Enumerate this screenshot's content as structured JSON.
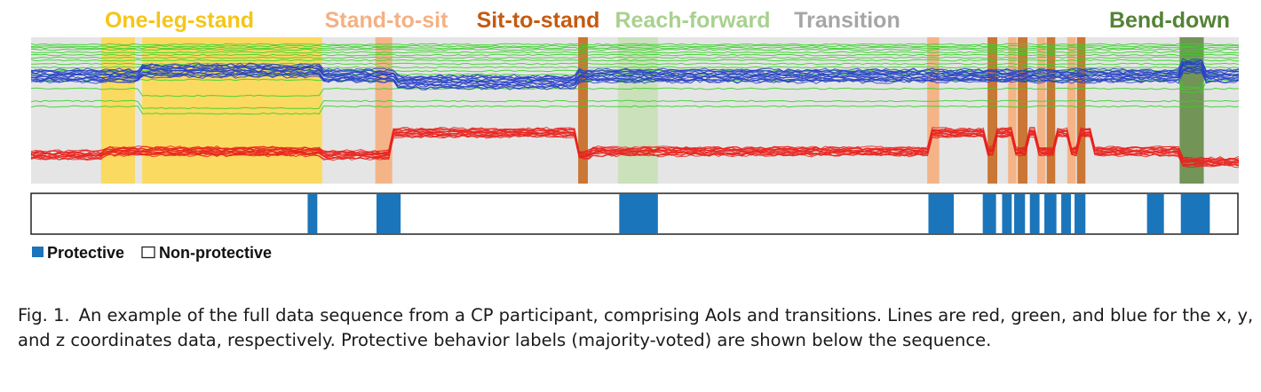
{
  "chart_data": {
    "type": "line",
    "title": "",
    "activities": [
      {
        "name": "One-leg-stand",
        "color": "#f5c518",
        "fill": "#fbd95a",
        "spans": [
          [
            0.058,
            0.086
          ],
          [
            0.092,
            0.241
          ]
        ]
      },
      {
        "name": "Stand-to-sit",
        "color": "#f4b183",
        "fill": "#f4b183",
        "spans": [
          [
            0.285,
            0.299
          ],
          [
            0.742,
            0.752
          ]
        ]
      },
      {
        "name": "Sit-to-stand",
        "color": "#c55a11",
        "fill": "#c8702a",
        "spans": [
          [
            0.453,
            0.461
          ],
          [
            0.792,
            0.8
          ],
          [
            0.817,
            0.825
          ],
          [
            0.841,
            0.848
          ],
          [
            0.866,
            0.873
          ]
        ]
      },
      {
        "name": "Reach-forward",
        "color": "#a9d18e",
        "fill": "#c5e0b4",
        "spans": [
          [
            0.486,
            0.519
          ]
        ]
      },
      {
        "name": "Transition",
        "color": "#a6a6a6",
        "fill": "#e6e6e6",
        "spans": []
      },
      {
        "name": "Bend-down",
        "color": "#548235",
        "fill": "#6b8f4e",
        "spans": [
          [
            0.951,
            0.971
          ]
        ]
      }
    ],
    "extra_orange_spans": [
      [
        0.809,
        0.816
      ],
      [
        0.833,
        0.84
      ],
      [
        0.858,
        0.865
      ]
    ],
    "series": [
      {
        "name": "x",
        "color": "#e8231e"
      },
      {
        "name": "y",
        "color": "#39d12a"
      },
      {
        "name": "z",
        "color": "#2840c8"
      }
    ],
    "protective_segments": [
      [
        0.229,
        0.237
      ],
      [
        0.286,
        0.306
      ],
      [
        0.487,
        0.519
      ],
      [
        0.743,
        0.764
      ],
      [
        0.788,
        0.799
      ],
      [
        0.804,
        0.812
      ],
      [
        0.814,
        0.823
      ],
      [
        0.827,
        0.835
      ],
      [
        0.839,
        0.849
      ],
      [
        0.853,
        0.861
      ],
      [
        0.864,
        0.873
      ],
      [
        0.924,
        0.938
      ],
      [
        0.952,
        0.976
      ]
    ],
    "legend": [
      {
        "label": "Protective",
        "color": "#1b75bb"
      },
      {
        "label": "Non-protective",
        "color": "#ffffff"
      }
    ]
  },
  "caption": {
    "prefix": "Fig. 1.",
    "text": "An example of the full data sequence from a CP participant, comprising AoIs and transitions. Lines are red, green, and blue for the x, y, and z coordinates data, respectively. Protective behavior labels (majority-voted) are shown below the sequence."
  }
}
